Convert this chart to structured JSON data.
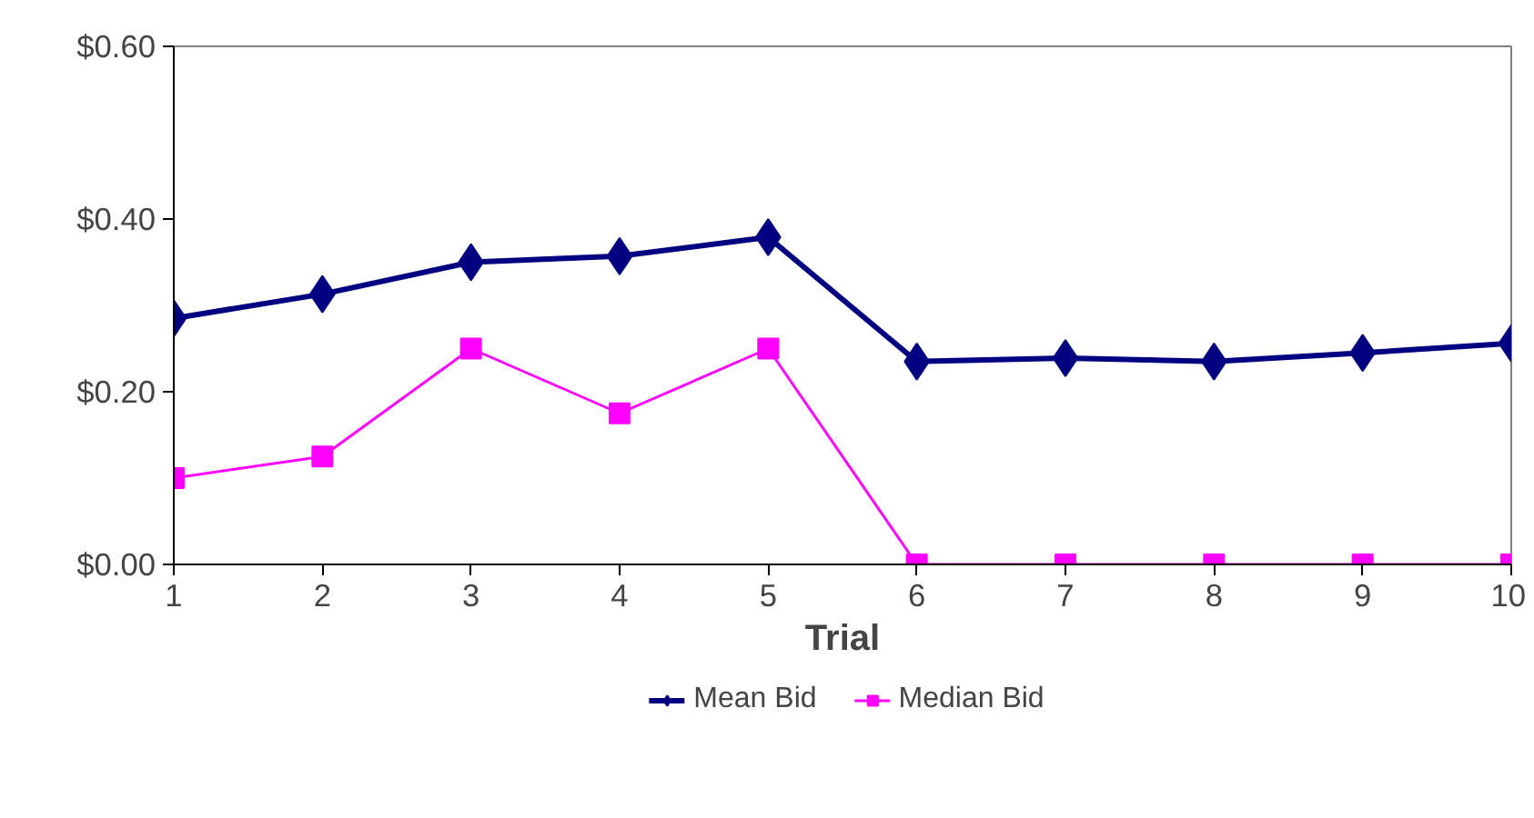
{
  "chart_data": {
    "type": "line",
    "xlabel": "Trial",
    "x": [
      1,
      2,
      3,
      4,
      5,
      6,
      7,
      8,
      9,
      10
    ],
    "series": [
      {
        "name": "Mean Bid",
        "color": "#000080",
        "marker": "diamond",
        "values": [
          0.285,
          0.313,
          0.35,
          0.357,
          0.379,
          0.235,
          0.239,
          0.235,
          0.245,
          0.256
        ]
      },
      {
        "name": "Median Bid",
        "color": "#ff00ff",
        "marker": "square",
        "values": [
          0.1,
          0.125,
          0.25,
          0.175,
          0.25,
          0,
          0,
          0,
          0,
          0
        ]
      }
    ],
    "xlim": [
      1,
      10
    ],
    "xticks": [
      1,
      2,
      3,
      4,
      5,
      6,
      7,
      8,
      9,
      10
    ],
    "ylim": [
      0,
      0.6
    ],
    "yticks": [
      {
        "value": 0,
        "label": "$0.00"
      },
      {
        "value": 0.2,
        "label": "$0.20"
      },
      {
        "value": 0.4,
        "label": "$0.40"
      },
      {
        "value": 0.6,
        "label": "$0.60"
      }
    ],
    "grid": false,
    "legend": "bottom",
    "line_style": "solid"
  }
}
